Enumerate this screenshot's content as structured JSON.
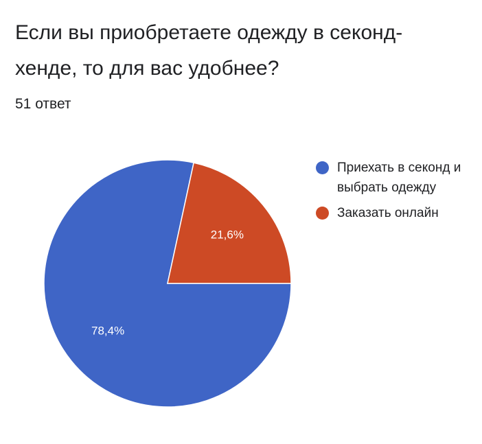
{
  "title": "Если вы приобретаете одежду в секонд-хенде, то для вас удобнее?",
  "response_count": "51 ответ",
  "chart_data": {
    "type": "pie",
    "title": "Если вы приобретаете одежду в секонд-хенде, то для вас удобнее?",
    "categories": [
      "Приехать в секонд и выбрать одежду",
      "Заказать онлайн"
    ],
    "values": [
      78.4,
      21.6
    ],
    "labels": [
      "78,4%",
      "21,6%"
    ],
    "colors": [
      "#3f65c6",
      "#cd4a25"
    ],
    "legend_position": "right"
  }
}
